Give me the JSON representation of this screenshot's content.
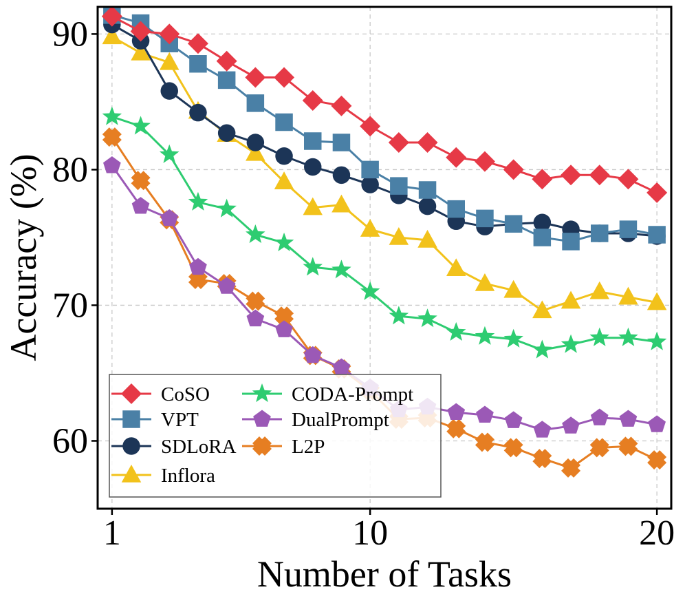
{
  "chart_data": {
    "type": "line",
    "title": "",
    "xlabel": "Number of Tasks",
    "ylabel": "Accuracy (%)",
    "x": [
      1,
      2,
      3,
      4,
      5,
      6,
      7,
      8,
      9,
      10,
      11,
      12,
      13,
      14,
      15,
      16,
      17,
      18,
      19,
      20
    ],
    "xticks": [
      1,
      10,
      20
    ],
    "yticks": [
      60,
      70,
      80,
      90
    ],
    "xlim": [
      0.5,
      20.5
    ],
    "ylim": [
      55,
      92
    ],
    "grid": true,
    "legend_position": "lower-left",
    "series": [
      {
        "name": "CoSO",
        "color": "#e63946",
        "marker": "diamond",
        "values": [
          91.3,
          90.2,
          90.0,
          89.3,
          88.0,
          86.8,
          86.8,
          85.1,
          84.7,
          83.2,
          82.0,
          82.0,
          80.9,
          80.6,
          80.0,
          79.3,
          79.6,
          79.6,
          79.3,
          78.3
        ]
      },
      {
        "name": "VPT",
        "color": "#4a80a6",
        "marker": "square",
        "values": [
          91.4,
          90.8,
          89.3,
          87.8,
          86.6,
          84.9,
          83.5,
          82.1,
          82.0,
          80.0,
          78.8,
          78.5,
          77.1,
          76.4,
          76.0,
          75.0,
          74.7,
          75.3,
          75.6,
          75.2
        ]
      },
      {
        "name": "SDLoRA",
        "color": "#1c3557",
        "marker": "circle",
        "values": [
          90.7,
          89.5,
          85.8,
          84.2,
          82.7,
          82.0,
          81.0,
          80.2,
          79.6,
          78.9,
          78.1,
          77.3,
          76.2,
          75.8,
          76.0,
          76.1,
          75.6,
          75.3,
          75.3,
          75.1
        ]
      },
      {
        "name": "Inflora",
        "color": "#f2c21b",
        "marker": "triangle",
        "values": [
          89.8,
          88.6,
          87.9,
          84.3,
          82.6,
          81.2,
          79.1,
          77.2,
          77.4,
          75.6,
          75.0,
          74.8,
          72.7,
          71.6,
          71.1,
          69.6,
          70.3,
          71.0,
          70.6,
          70.2
        ]
      },
      {
        "name": "CODA-Prompt",
        "color": "#2ecc71",
        "marker": "star",
        "values": [
          83.9,
          83.2,
          81.1,
          77.6,
          77.1,
          75.2,
          74.6,
          72.8,
          72.6,
          71.0,
          69.2,
          69.0,
          68.0,
          67.7,
          67.5,
          66.7,
          67.1,
          67.6,
          67.6,
          67.3
        ]
      },
      {
        "name": "DualPrompt",
        "color": "#9b59b6",
        "marker": "pentagon",
        "values": [
          80.3,
          77.3,
          76.4,
          72.8,
          71.4,
          69.0,
          68.2,
          66.3,
          65.4,
          63.9,
          62.3,
          62.5,
          62.1,
          61.9,
          61.5,
          60.8,
          61.1,
          61.7,
          61.6,
          61.2
        ]
      },
      {
        "name": "L2P",
        "color": "#e67e22",
        "marker": "x",
        "values": [
          82.4,
          79.2,
          76.3,
          71.9,
          71.6,
          70.3,
          69.2,
          66.3,
          65.3,
          63.7,
          61.6,
          61.7,
          60.9,
          59.9,
          59.5,
          58.7,
          58.0,
          59.5,
          59.6,
          58.6
        ]
      }
    ]
  }
}
